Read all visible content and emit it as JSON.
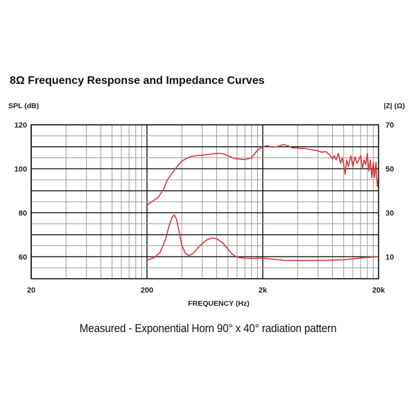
{
  "title": "8Ω Frequency Response and Impedance Curves",
  "caption": "Measured - Exponential Horn 90° x 40° radiation pattern",
  "colors": {
    "curve": "#d9363e",
    "grid": "#9a9a9a",
    "frame": "#111111"
  },
  "chart_data": {
    "type": "line",
    "xlabel": "FREQUENCY (Hz)",
    "ylabel_left": "SPL (dB)",
    "ylabel_right": "|Z| (Ω)",
    "x_scale": "log",
    "xlim": [
      20,
      20000
    ],
    "ylim_left": [
      50,
      120
    ],
    "ylim_right": [
      0,
      70
    ],
    "x_ticks": [
      {
        "value": 20,
        "label": "20"
      },
      {
        "value": 200,
        "label": "200"
      },
      {
        "value": 2000,
        "label": "2k"
      },
      {
        "value": 20000,
        "label": "20k"
      }
    ],
    "y_ticks_left": [
      {
        "value": 60,
        "label": "60"
      },
      {
        "value": 80,
        "label": "80"
      },
      {
        "value": 100,
        "label": "100"
      },
      {
        "value": 120,
        "label": "120"
      }
    ],
    "y_ticks_right": [
      {
        "value": 10,
        "label": "10"
      },
      {
        "value": 30,
        "label": "30"
      },
      {
        "value": 50,
        "label": "50"
      },
      {
        "value": 70,
        "label": "70"
      }
    ],
    "grid": true,
    "series": [
      {
        "axis": "left",
        "points": [
          [
            200,
            83.5
          ],
          [
            220,
            85
          ],
          [
            250,
            87
          ],
          [
            280,
            91
          ],
          [
            300,
            95
          ],
          [
            330,
            98
          ],
          [
            370,
            101.5
          ],
          [
            400,
            103.5
          ],
          [
            450,
            105
          ],
          [
            500,
            105.8
          ],
          [
            600,
            106.2
          ],
          [
            700,
            106.6
          ],
          [
            800,
            107
          ],
          [
            900,
            106.9
          ],
          [
            1000,
            106
          ],
          [
            1100,
            105
          ],
          [
            1200,
            104.5
          ],
          [
            1400,
            104.2
          ],
          [
            1600,
            105
          ],
          [
            1800,
            108.5
          ],
          [
            2000,
            110
          ],
          [
            2200,
            110.5
          ],
          [
            2400,
            109.8
          ],
          [
            2600,
            110
          ],
          [
            2800,
            110.4
          ],
          [
            3000,
            111
          ],
          [
            3300,
            110.5
          ],
          [
            3600,
            109.5
          ],
          [
            4000,
            109.5
          ],
          [
            4300,
            109.2
          ],
          [
            4600,
            109.3
          ],
          [
            5000,
            108.8
          ],
          [
            5500,
            108.5
          ],
          [
            6000,
            108.2
          ],
          [
            6500,
            107.5
          ],
          [
            7000,
            107.8
          ],
          [
            7500,
            106.5
          ],
          [
            8000,
            104.5
          ],
          [
            8300,
            106
          ],
          [
            8600,
            104
          ],
          [
            9000,
            107
          ],
          [
            9400,
            102.5
          ],
          [
            9700,
            105
          ],
          [
            10000,
            102
          ],
          [
            10300,
            97.5
          ],
          [
            10600,
            104
          ],
          [
            11000,
            101
          ],
          [
            11500,
            106
          ],
          [
            12000,
            101
          ],
          [
            12500,
            105.5
          ],
          [
            13000,
            102.5
          ],
          [
            13500,
            104
          ],
          [
            14000,
            106
          ],
          [
            14500,
            100
          ],
          [
            15000,
            104
          ],
          [
            15500,
            102
          ],
          [
            16000,
            107
          ],
          [
            16500,
            99
          ],
          [
            17000,
            104
          ],
          [
            17500,
            96
          ],
          [
            18000,
            103
          ],
          [
            18500,
            96
          ],
          [
            19000,
            103
          ],
          [
            19500,
            92
          ],
          [
            20000,
            95
          ]
        ]
      },
      {
        "axis": "right",
        "points": [
          [
            200,
            8.5
          ],
          [
            230,
            9.5
          ],
          [
            260,
            12
          ],
          [
            290,
            18
          ],
          [
            310,
            24
          ],
          [
            330,
            28
          ],
          [
            345,
            29
          ],
          [
            360,
            27
          ],
          [
            380,
            21
          ],
          [
            400,
            15
          ],
          [
            430,
            11.5
          ],
          [
            460,
            10.5
          ],
          [
            500,
            11.5
          ],
          [
            550,
            14
          ],
          [
            600,
            16
          ],
          [
            650,
            17.5
          ],
          [
            700,
            18.3
          ],
          [
            750,
            18.5
          ],
          [
            800,
            18.2
          ],
          [
            900,
            16.3
          ],
          [
            1000,
            13.5
          ],
          [
            1100,
            11
          ],
          [
            1200,
            9.8
          ],
          [
            1400,
            9.3
          ],
          [
            1700,
            9.2
          ],
          [
            2000,
            9.4
          ],
          [
            2300,
            9
          ],
          [
            2700,
            8.7
          ],
          [
            3000,
            8.4
          ],
          [
            4000,
            8.3
          ],
          [
            5000,
            8.3
          ],
          [
            7000,
            8.4
          ],
          [
            10000,
            8.6
          ],
          [
            13000,
            9.2
          ],
          [
            15000,
            9.6
          ],
          [
            17000,
            9.8
          ],
          [
            20000,
            10
          ]
        ]
      }
    ]
  }
}
